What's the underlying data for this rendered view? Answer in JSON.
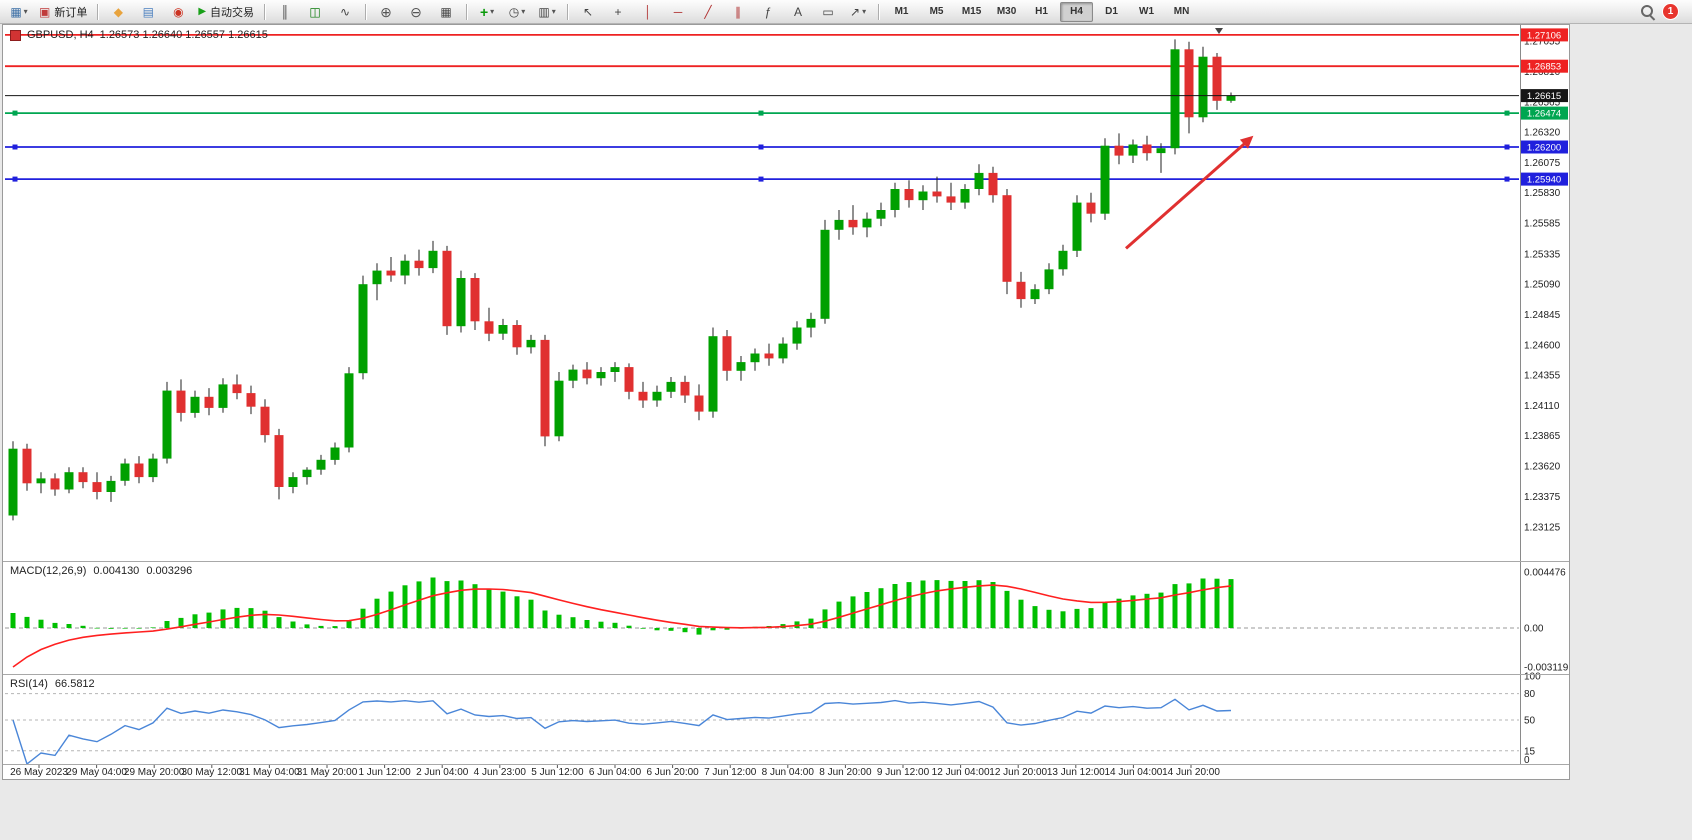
{
  "toolbar": {
    "badge": "1",
    "glyphs": {
      "chart-plus": "▦",
      "order": "▣",
      "diamond": "◆",
      "market": "▤",
      "globe": "◉",
      "play": "▶",
      "bars": "║",
      "candles": "◫",
      "line": "∿",
      "zoom-in": "⊕",
      "zoom-out": "⊖",
      "grid": "▦",
      "indicator": "+",
      "clock": "◷",
      "template": "▥",
      "cursor": "↖",
      "crosshair": "+",
      "vline": "│",
      "hline": "─",
      "trend": "╱",
      "channel": "∥",
      "fibo": "ƒ",
      "text": "A",
      "label": "▭",
      "arrow": "↗"
    },
    "items": [
      {
        "name": "new-chart",
        "icon": "chart-plus",
        "dd": true
      },
      {
        "name": "new-order",
        "icon": "order",
        "label": "新订单"
      },
      {
        "sep": true
      },
      {
        "name": "metaeditor",
        "icon": "diamond"
      },
      {
        "name": "market",
        "icon": "market"
      },
      {
        "name": "community",
        "icon": "globe"
      },
      {
        "name": "auto-trading",
        "icon": "play",
        "label": "自动交易"
      },
      {
        "sep": true
      },
      {
        "name": "bar-chart",
        "icon": "bars"
      },
      {
        "name": "candle-chart",
        "icon": "candles"
      },
      {
        "name": "line-chart",
        "icon": "line"
      },
      {
        "sep": true
      },
      {
        "name": "zoom-in",
        "icon": "zoom-in"
      },
      {
        "name": "zoom-out",
        "icon": "zoom-out"
      },
      {
        "name": "tile-windows",
        "icon": "grid"
      },
      {
        "sep": true
      },
      {
        "name": "indicators",
        "icon": "indicator",
        "dd": true
      },
      {
        "name": "periods",
        "icon": "clock",
        "dd": true
      },
      {
        "name": "templates",
        "icon": "template",
        "dd": true
      },
      {
        "sep": true
      },
      {
        "name": "cursor",
        "icon": "cursor"
      },
      {
        "name": "crosshair",
        "icon": "crosshair"
      },
      {
        "name": "vertical-line",
        "icon": "vline"
      },
      {
        "name": "horizontal-line",
        "icon": "hline"
      },
      {
        "name": "trendline",
        "icon": "trend"
      },
      {
        "name": "channel",
        "icon": "channel"
      },
      {
        "name": "fibonacci",
        "icon": "fibo"
      },
      {
        "name": "text",
        "icon": "text"
      },
      {
        "name": "label",
        "icon": "label"
      },
      {
        "name": "arrows",
        "icon": "arrow",
        "dd": true
      },
      {
        "sep": true
      }
    ],
    "timeframes": [
      "M1",
      "M5",
      "M15",
      "M30",
      "H1",
      "H4",
      "D1",
      "W1",
      "MN"
    ],
    "active_timeframe": "H4"
  },
  "chart": {
    "symbol_period": "GBPUSD, H4",
    "ohlc": "1.26573 1.26640 1.26557 1.26615"
  },
  "chart_data": [
    {
      "type": "candlestick",
      "symbol": "GBPUSD",
      "period": "H4",
      "ylim": [
        1.2286,
        1.2717
      ],
      "y_ticks": [
        "1.27055",
        "1.26810",
        "1.26565",
        "1.26320",
        "1.26075",
        "1.25830",
        "1.25585",
        "1.25335",
        "1.25090",
        "1.24845",
        "1.24600",
        "1.24355",
        "1.24110",
        "1.23865",
        "1.23620",
        "1.23375",
        "1.23125"
      ],
      "x_labels": [
        "26 May 2023",
        "29 May 04:00",
        "29 May 20:00",
        "30 May 12:00",
        "31 May 04:00",
        "31 May 20:00",
        "1 Jun 12:00",
        "2 Jun 04:00",
        "4 Jun 23:00",
        "5 Jun 12:00",
        "6 Jun 04:00",
        "6 Jun 20:00",
        "7 Jun 12:00",
        "8 Jun 04:00",
        "8 Jun 20:00",
        "9 Jun 12:00",
        "12 Jun 04:00",
        "12 Jun 20:00",
        "13 Jun 12:00",
        "14 Jun 04:00",
        "14 Jun 20:00"
      ],
      "up_color": "#00a000",
      "down_color": "#e03030",
      "wick_color": "#222222",
      "candles": [
        [
          1.2322,
          1.2382,
          1.2318,
          1.2376
        ],
        [
          1.2376,
          1.238,
          1.2342,
          1.2348
        ],
        [
          1.2348,
          1.2357,
          1.234,
          1.2352
        ],
        [
          1.2352,
          1.2356,
          1.2338,
          1.2343
        ],
        [
          1.2343,
          1.2361,
          1.234,
          1.2357
        ],
        [
          1.2357,
          1.2361,
          1.2344,
          1.2349
        ],
        [
          1.2349,
          1.2357,
          1.2335,
          1.2341
        ],
        [
          1.2341,
          1.2354,
          1.2333,
          1.235
        ],
        [
          1.235,
          1.2368,
          1.2346,
          1.2364
        ],
        [
          1.2364,
          1.237,
          1.2348,
          1.2353
        ],
        [
          1.2353,
          1.2372,
          1.2349,
          1.2368
        ],
        [
          1.2368,
          1.243,
          1.2364,
          1.2423
        ],
        [
          1.2423,
          1.2432,
          1.2398,
          1.2405
        ],
        [
          1.2405,
          1.2423,
          1.2401,
          1.2418
        ],
        [
          1.2418,
          1.2425,
          1.2403,
          1.2409
        ],
        [
          1.2409,
          1.2433,
          1.2405,
          1.2428
        ],
        [
          1.2428,
          1.2436,
          1.2416,
          1.2421
        ],
        [
          1.2421,
          1.2427,
          1.2404,
          1.241
        ],
        [
          1.241,
          1.2416,
          1.2381,
          1.2387
        ],
        [
          1.2387,
          1.2392,
          1.2335,
          1.2345
        ],
        [
          1.2345,
          1.2357,
          1.234,
          1.2353
        ],
        [
          1.2353,
          1.2361,
          1.2347,
          1.2359
        ],
        [
          1.2359,
          1.2371,
          1.2355,
          1.2367
        ],
        [
          1.2367,
          1.2381,
          1.2363,
          1.2377
        ],
        [
          1.2377,
          1.2442,
          1.2373,
          1.2437
        ],
        [
          1.2437,
          1.2516,
          1.2432,
          1.2509
        ],
        [
          1.2509,
          1.2526,
          1.2496,
          1.252
        ],
        [
          1.252,
          1.2531,
          1.2511,
          1.2516
        ],
        [
          1.2516,
          1.2533,
          1.2509,
          1.2528
        ],
        [
          1.2528,
          1.2537,
          1.2516,
          1.2522
        ],
        [
          1.2522,
          1.2544,
          1.2518,
          1.2536
        ],
        [
          1.2536,
          1.254,
          1.2468,
          1.2475
        ],
        [
          1.2475,
          1.252,
          1.247,
          1.2514
        ],
        [
          1.2514,
          1.2518,
          1.2472,
          1.2479
        ],
        [
          1.2479,
          1.249,
          1.2463,
          1.2469
        ],
        [
          1.2469,
          1.2481,
          1.2464,
          1.2476
        ],
        [
          1.2476,
          1.248,
          1.2452,
          1.2458
        ],
        [
          1.2458,
          1.2468,
          1.2453,
          1.2464
        ],
        [
          1.2464,
          1.2468,
          1.2378,
          1.2386
        ],
        [
          1.2386,
          1.2438,
          1.2382,
          1.2431
        ],
        [
          1.2431,
          1.2444,
          1.2425,
          1.244
        ],
        [
          1.244,
          1.2446,
          1.2428,
          1.2433
        ],
        [
          1.2433,
          1.2442,
          1.2427,
          1.2438
        ],
        [
          1.2438,
          1.2446,
          1.243,
          1.2442
        ],
        [
          1.2442,
          1.2445,
          1.2416,
          1.2422
        ],
        [
          1.2422,
          1.243,
          1.2409,
          1.2415
        ],
        [
          1.2415,
          1.2427,
          1.241,
          1.2422
        ],
        [
          1.2422,
          1.2434,
          1.2417,
          1.243
        ],
        [
          1.243,
          1.2435,
          1.2413,
          1.2419
        ],
        [
          1.2419,
          1.2428,
          1.2399,
          1.2406
        ],
        [
          1.2406,
          1.2474,
          1.2401,
          1.2467
        ],
        [
          1.2467,
          1.2472,
          1.2431,
          1.2439
        ],
        [
          1.2439,
          1.2451,
          1.2431,
          1.2446
        ],
        [
          1.2446,
          1.2457,
          1.2439,
          1.2453
        ],
        [
          1.2453,
          1.2461,
          1.2443,
          1.2449
        ],
        [
          1.2449,
          1.2466,
          1.2445,
          1.2461
        ],
        [
          1.2461,
          1.2479,
          1.2456,
          1.2474
        ],
        [
          1.2474,
          1.2486,
          1.2466,
          1.2481
        ],
        [
          1.2481,
          1.2561,
          1.2477,
          1.2553
        ],
        [
          1.2553,
          1.2569,
          1.2545,
          1.2561
        ],
        [
          1.2561,
          1.2573,
          1.2549,
          1.2555
        ],
        [
          1.2555,
          1.2567,
          1.2547,
          1.2562
        ],
        [
          1.2562,
          1.2575,
          1.2556,
          1.2569
        ],
        [
          1.2569,
          1.2591,
          1.2563,
          1.2586
        ],
        [
          1.2586,
          1.2593,
          1.2571,
          1.2577
        ],
        [
          1.2577,
          1.2589,
          1.2569,
          1.2584
        ],
        [
          1.2584,
          1.2596,
          1.2575,
          1.258
        ],
        [
          1.258,
          1.2591,
          1.2569,
          1.2575
        ],
        [
          1.2575,
          1.259,
          1.257,
          1.2586
        ],
        [
          1.2586,
          1.2606,
          1.2581,
          1.2599
        ],
        [
          1.2599,
          1.2604,
          1.2575,
          1.2581
        ],
        [
          1.2581,
          1.2586,
          1.2501,
          1.2511
        ],
        [
          1.2511,
          1.2519,
          1.249,
          1.2497
        ],
        [
          1.2497,
          1.2509,
          1.2493,
          1.2505
        ],
        [
          1.2505,
          1.2526,
          1.2501,
          1.2521
        ],
        [
          1.2521,
          1.2541,
          1.2516,
          1.2536
        ],
        [
          1.2536,
          1.2581,
          1.2531,
          1.2575
        ],
        [
          1.2575,
          1.2583,
          1.2559,
          1.2566
        ],
        [
          1.2566,
          1.2627,
          1.2561,
          1.2621
        ],
        [
          1.2621,
          1.2631,
          1.2606,
          1.2613
        ],
        [
          1.2613,
          1.2626,
          1.2607,
          1.2622
        ],
        [
          1.2622,
          1.2629,
          1.2609,
          1.2615
        ],
        [
          1.2615,
          1.2623,
          1.2599,
          1.2619
        ],
        [
          1.2619,
          1.2707,
          1.2614,
          1.2699
        ],
        [
          1.2699,
          1.2705,
          1.2631,
          1.2644
        ],
        [
          1.2644,
          1.2701,
          1.264,
          1.2693
        ],
        [
          1.2693,
          1.2696,
          1.265,
          1.26573
        ],
        [
          1.26573,
          1.2664,
          1.26557,
          1.26615
        ]
      ],
      "hlines": [
        {
          "price": 1.27106,
          "label": "1.27106",
          "color": "#ee2222",
          "handles": false,
          "is_price": false
        },
        {
          "price": 1.26853,
          "label": "1.26853",
          "color": "#ee2222",
          "handles": false,
          "is_price": false
        },
        {
          "price": 1.26615,
          "label": "1.26615",
          "color": "#151515",
          "handles": false,
          "is_price": true
        },
        {
          "price": 1.26474,
          "label": "1.26474",
          "color": "#00a651",
          "handles": true,
          "is_price": false
        },
        {
          "price": 1.262,
          "label": "1.26200",
          "color": "#2020dd",
          "handles": true,
          "is_price": false
        },
        {
          "price": 1.2594,
          "label": "1.25940",
          "color": "#2020dd",
          "handles": true,
          "is_price": false
        }
      ],
      "arrow": {
        "from_bar": 79.5,
        "from_price": 1.2538,
        "to_bar": 88.6,
        "to_price": 1.2629,
        "color": "#e03030"
      }
    },
    {
      "type": "macd",
      "label": "MACD(12,26,9)",
      "value_macd": "0.004130",
      "value_signal": "0.003296",
      "fast": 12,
      "slow": 26,
      "signal": 9,
      "ylim": [
        -0.0036,
        0.0052
      ],
      "y_ticks": [
        {
          "value": 0.004476,
          "label": "0.004476"
        },
        {
          "value": 0,
          "label": "0.00"
        },
        {
          "value": -0.003119,
          "label": "-0.003119"
        }
      ],
      "seed_macd": 0.0012,
      "seed_signal": -0.003119,
      "hist_color": "#00bf00",
      "signal_color": "#ff2020"
    },
    {
      "type": "rsi",
      "label": "RSI(14)",
      "value": "66.5812",
      "period": 14,
      "levels": [
        80,
        50,
        15
      ],
      "y_ticks": [
        {
          "value": 100,
          "label": "100"
        },
        {
          "value": 80,
          "label": "80"
        },
        {
          "value": 50,
          "label": "50"
        },
        {
          "value": 15,
          "label": "15"
        },
        {
          "value": 0,
          "label": "0"
        }
      ],
      "color": "#4a86d8"
    }
  ]
}
